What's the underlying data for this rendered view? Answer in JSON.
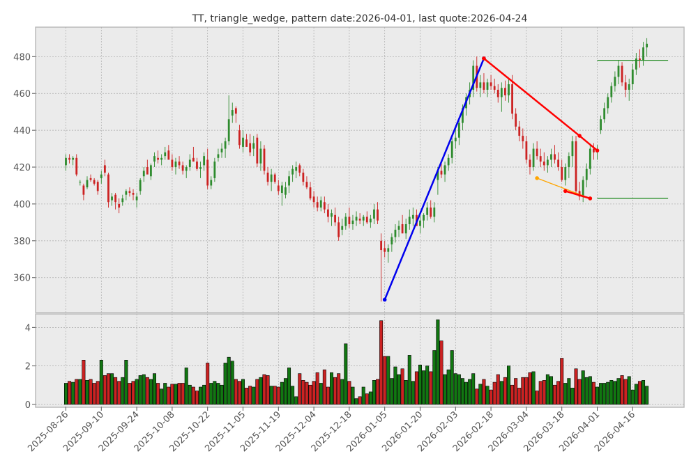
{
  "chart_data": {
    "type": "candlestick",
    "title": "TT, triangle_wedge, pattern date:2026-04-01, last quote:2026-04-24",
    "price_axis": {
      "ylim": [
        341,
        496
      ],
      "ticks": [
        360,
        380,
        400,
        420,
        440,
        460,
        480
      ]
    },
    "volume_axis": {
      "ylim": [
        -0.15,
        4.7
      ],
      "ticks": [
        0,
        2,
        4
      ]
    },
    "x_ticks": [
      "2025-08-26",
      "2025-09-10",
      "2025-09-24",
      "2025-10-08",
      "2025-10-22",
      "2025-11-05",
      "2025-11-19",
      "2025-12-04",
      "2025-12-18",
      "2026-01-05",
      "2026-01-20",
      "2026-02-03",
      "2026-02-18",
      "2026-03-04",
      "2026-03-18",
      "2026-04-01",
      "2026-04-16"
    ],
    "x_tick_index": [
      0,
      10,
      20,
      30,
      40,
      50,
      60,
      70,
      80,
      90,
      100,
      110,
      120,
      130,
      140,
      150,
      160
    ],
    "grid": true,
    "bars": [
      [
        421,
        427,
        418,
        425,
        1.1
      ],
      [
        425,
        427,
        422,
        424,
        1.2
      ],
      [
        424,
        426,
        421,
        425,
        1.15
      ],
      [
        425,
        427,
        415,
        416,
        1.3
      ],
      [
        412,
        413,
        410,
        412,
        1.3
      ],
      [
        410,
        411,
        402,
        405,
        2.3
      ],
      [
        409,
        415,
        408,
        413,
        1.25
      ],
      [
        414,
        416,
        412,
        413,
        1.3
      ],
      [
        413,
        414,
        410,
        411,
        1.1
      ],
      [
        412,
        413,
        405,
        407,
        1.2
      ],
      [
        414,
        418,
        411,
        416,
        2.3
      ],
      [
        421,
        424,
        415,
        417,
        1.5
      ],
      [
        416,
        417,
        398,
        401,
        1.6
      ],
      [
        402,
        406,
        399,
        404,
        1.6
      ],
      [
        405,
        406,
        397,
        401,
        1.4
      ],
      [
        400,
        403,
        395,
        398,
        1.2
      ],
      [
        401,
        405,
        399,
        403,
        1.4
      ],
      [
        405,
        408,
        402,
        407,
        2.3
      ],
      [
        407,
        409,
        404,
        406,
        1.1
      ],
      [
        406,
        408,
        402,
        405,
        1.2
      ],
      [
        402,
        406,
        398,
        404,
        1.3
      ],
      [
        407,
        414,
        405,
        413,
        1.5
      ],
      [
        415,
        420,
        412,
        418,
        1.55
      ],
      [
        420,
        424,
        418,
        416,
        1.4
      ],
      [
        415,
        422,
        413,
        421,
        1.3
      ],
      [
        423,
        428,
        420,
        426,
        1.6
      ],
      [
        425,
        429,
        422,
        424,
        1.1
      ],
      [
        424,
        427,
        421,
        425,
        0.8
      ],
      [
        426,
        431,
        424,
        428,
        1.1
      ],
      [
        429,
        432,
        425,
        424,
        0.9
      ],
      [
        424,
        427,
        418,
        420,
        1.05
      ],
      [
        420,
        425,
        416,
        423,
        1.05
      ],
      [
        423,
        426,
        419,
        421,
        1.1
      ],
      [
        421,
        423,
        416,
        418,
        1.1
      ],
      [
        418,
        421,
        414,
        420,
        1.9
      ],
      [
        420,
        427,
        418,
        424,
        1.0
      ],
      [
        425,
        431,
        423,
        423,
        0.9
      ],
      [
        423,
        425,
        418,
        419,
        0.7
      ],
      [
        419,
        423,
        414,
        420,
        0.9
      ],
      [
        421,
        428,
        418,
        426,
        1.0
      ],
      [
        424,
        430,
        408,
        410,
        2.15
      ],
      [
        410,
        415,
        408,
        413,
        1.1
      ],
      [
        414,
        425,
        412,
        423,
        1.2
      ],
      [
        425,
        430,
        423,
        427,
        1.1
      ],
      [
        428,
        433,
        425,
        430,
        1.0
      ],
      [
        430,
        436,
        425,
        434,
        2.15
      ],
      [
        434,
        459,
        432,
        446,
        2.45
      ],
      [
        448,
        455,
        444,
        451,
        2.25
      ],
      [
        452,
        453,
        444,
        449,
        1.3
      ],
      [
        440,
        443,
        430,
        432,
        1.2
      ],
      [
        431,
        440,
        428,
        436,
        1.3
      ],
      [
        435,
        438,
        432,
        431,
        0.85
      ],
      [
        433,
        438,
        426,
        428,
        0.95
      ],
      [
        430,
        437,
        426,
        433,
        0.9
      ],
      [
        436,
        438,
        420,
        422,
        1.3
      ],
      [
        422,
        434,
        418,
        430,
        1.4
      ],
      [
        430,
        432,
        416,
        418,
        1.55
      ],
      [
        417,
        420,
        410,
        412,
        1.5
      ],
      [
        412,
        419,
        407,
        416,
        0.95
      ],
      [
        416,
        417,
        411,
        412,
        0.95
      ],
      [
        410,
        413,
        405,
        407,
        0.9
      ],
      [
        406,
        412,
        399,
        410,
        1.15
      ],
      [
        405,
        412,
        403,
        409,
        1.35
      ],
      [
        410,
        418,
        406,
        415,
        1.9
      ],
      [
        416,
        421,
        412,
        419,
        0.95
      ],
      [
        418,
        423,
        414,
        420,
        0.4
      ],
      [
        421,
        422,
        415,
        417,
        1.6
      ],
      [
        417,
        419,
        410,
        412,
        1.25
      ],
      [
        412,
        415,
        408,
        409,
        1.15
      ],
      [
        409,
        412,
        402,
        403,
        1.0
      ],
      [
        404,
        407,
        398,
        401,
        1.2
      ],
      [
        401,
        404,
        396,
        398,
        1.65
      ],
      [
        398,
        404,
        396,
        402,
        1.1
      ],
      [
        401,
        404,
        395,
        397,
        1.8
      ],
      [
        397,
        400,
        390,
        393,
        0.9
      ],
      [
        393,
        397,
        388,
        395,
        1.65
      ],
      [
        394,
        398,
        388,
        390,
        1.4
      ],
      [
        390,
        393,
        380,
        382,
        1.6
      ],
      [
        386,
        392,
        383,
        388,
        1.3
      ],
      [
        388,
        395,
        386,
        393,
        3.15
      ],
      [
        393,
        398,
        387,
        389,
        1.2
      ],
      [
        389,
        394,
        386,
        391,
        0.9
      ],
      [
        391,
        396,
        388,
        393,
        0.3
      ],
      [
        392,
        395,
        389,
        391,
        0.4
      ],
      [
        391,
        394,
        388,
        393,
        0.9
      ],
      [
        393,
        396,
        389,
        390,
        0.55
      ],
      [
        390,
        394,
        387,
        392,
        0.65
      ],
      [
        392,
        400,
        389,
        397,
        1.25
      ],
      [
        397,
        401,
        389,
        391,
        1.3
      ],
      [
        380,
        384,
        347,
        375,
        4.35
      ],
      [
        376,
        380,
        371,
        374,
        2.5
      ],
      [
        374,
        378,
        368,
        376,
        2.5
      ],
      [
        378,
        384,
        374,
        382,
        1.35
      ],
      [
        382,
        389,
        379,
        386,
        1.95
      ],
      [
        386,
        391,
        382,
        388,
        1.55
      ],
      [
        389,
        394,
        384,
        384,
        1.85
      ],
      [
        384,
        392,
        381,
        389,
        1.25
      ],
      [
        389,
        397,
        386,
        393,
        2.55
      ],
      [
        392,
        398,
        388,
        394,
        1.2
      ],
      [
        394,
        397,
        389,
        388,
        1.7
      ],
      [
        388,
        394,
        384,
        391,
        2.05
      ],
      [
        391,
        395,
        387,
        394,
        1.75
      ],
      [
        394,
        401,
        391,
        398,
        2.0
      ],
      [
        398,
        402,
        392,
        393,
        1.7
      ],
      [
        393,
        401,
        390,
        398,
        2.8
      ],
      [
        413,
        420,
        405,
        418,
        4.4
      ],
      [
        418,
        422,
        414,
        416,
        3.3
      ],
      [
        416,
        423,
        412,
        421,
        1.55
      ],
      [
        421,
        427,
        418,
        425,
        1.8
      ],
      [
        425,
        436,
        422,
        434,
        2.8
      ],
      [
        434,
        442,
        430,
        436,
        1.6
      ],
      [
        436,
        447,
        432,
        444,
        1.55
      ],
      [
        444,
        454,
        440,
        452,
        1.35
      ],
      [
        452,
        460,
        448,
        458,
        1.15
      ],
      [
        458,
        466,
        454,
        462,
        1.3
      ],
      [
        462,
        478,
        458,
        475,
        1.6
      ],
      [
        475,
        480,
        461,
        463,
        0.8
      ],
      [
        463,
        470,
        458,
        466,
        1.05
      ],
      [
        466,
        471,
        460,
        462,
        1.3
      ],
      [
        462,
        468,
        458,
        466,
        0.95
      ],
      [
        466,
        470,
        462,
        464,
        0.75
      ],
      [
        464,
        468,
        460,
        462,
        1.15
      ],
      [
        462,
        465,
        455,
        458,
        1.55
      ],
      [
        458,
        466,
        450,
        463,
        1.2
      ],
      [
        463,
        467,
        456,
        459,
        1.4
      ],
      [
        459,
        468,
        455,
        465,
        2.0
      ],
      [
        465,
        470,
        446,
        449,
        1.0
      ],
      [
        449,
        452,
        440,
        442,
        1.35
      ],
      [
        442,
        445,
        434,
        437,
        0.85
      ],
      [
        437,
        441,
        430,
        434,
        1.4
      ],
      [
        434,
        437,
        422,
        424,
        1.4
      ],
      [
        424,
        427,
        416,
        420,
        1.65
      ],
      [
        420,
        433,
        418,
        430,
        1.7
      ],
      [
        430,
        434,
        424,
        426,
        0.7
      ],
      [
        426,
        430,
        420,
        423,
        1.2
      ],
      [
        423,
        428,
        418,
        421,
        1.25
      ],
      [
        421,
        426,
        417,
        424,
        1.55
      ],
      [
        424,
        430,
        420,
        427,
        1.45
      ],
      [
        427,
        432,
        422,
        424,
        1.0
      ],
      [
        424,
        428,
        418,
        420,
        1.2
      ],
      [
        420,
        424,
        412,
        413,
        2.4
      ],
      [
        413,
        422,
        410,
        420,
        1.1
      ],
      [
        420,
        428,
        414,
        426,
        1.35
      ],
      [
        426,
        437,
        420,
        434,
        0.85
      ],
      [
        434,
        437,
        406,
        407,
        1.85
      ],
      [
        407,
        412,
        402,
        404,
        1.3
      ],
      [
        404,
        415,
        401,
        413,
        1.75
      ],
      [
        413,
        422,
        409,
        419,
        1.4
      ],
      [
        419,
        432,
        416,
        430,
        1.45
      ],
      [
        430,
        433,
        424,
        428,
        1.15
      ],
      [
        428,
        432,
        424,
        430,
        0.9
      ],
      [
        440,
        448,
        438,
        446,
        1.1
      ],
      [
        446,
        455,
        444,
        452,
        1.1
      ],
      [
        452,
        460,
        449,
        458,
        1.15
      ],
      [
        458,
        466,
        455,
        464,
        1.25
      ],
      [
        464,
        472,
        461,
        469,
        1.2
      ],
      [
        469,
        478,
        465,
        475,
        1.35
      ],
      [
        475,
        477,
        464,
        466,
        1.5
      ],
      [
        466,
        470,
        458,
        462,
        1.3
      ],
      [
        462,
        468,
        456,
        465,
        1.45
      ],
      [
        465,
        476,
        462,
        473,
        0.75
      ],
      [
        473,
        482,
        470,
        479,
        1.05
      ],
      [
        479,
        484,
        474,
        478,
        1.2
      ],
      [
        478,
        488,
        475,
        485,
        1.25
      ],
      [
        485,
        490,
        480,
        487,
        0.95
      ]
    ],
    "pattern_lines": [
      {
        "color": "#0000ee",
        "points": [
          [
            90,
            348
          ],
          [
            118,
            479
          ]
        ]
      },
      {
        "color": "#ff0000",
        "points": [
          [
            118,
            479
          ],
          [
            145,
            437
          ],
          [
            150,
            429
          ]
        ]
      },
      {
        "color": "#ffa500",
        "points": [
          [
            133,
            414
          ],
          [
            148,
            403
          ]
        ]
      },
      {
        "color": "#ff0000",
        "points": [
          [
            141,
            407
          ],
          [
            148,
            403
          ]
        ]
      }
    ],
    "levels": [
      {
        "color": "#228b22",
        "value": 478,
        "from": 150,
        "to": 170
      },
      {
        "color": "#228b22",
        "value": 403,
        "from": 150,
        "to": 170
      }
    ]
  }
}
